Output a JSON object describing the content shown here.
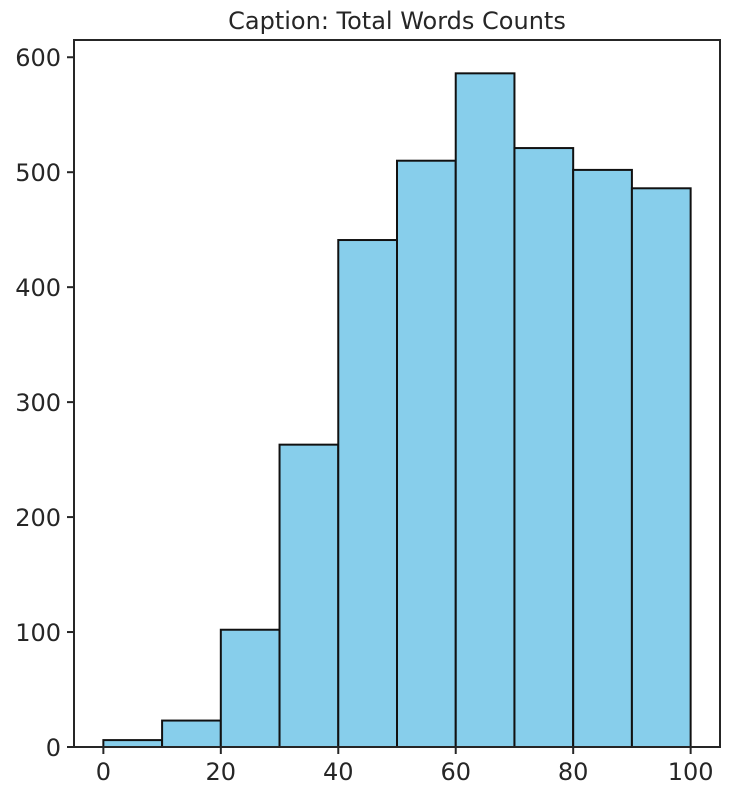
{
  "chart_data": {
    "type": "bar",
    "title": "Caption: Total Words Counts",
    "xlabel": "",
    "ylabel": "",
    "bins": [
      {
        "start": 0,
        "end": 10,
        "count": 6
      },
      {
        "start": 10,
        "end": 20,
        "count": 23
      },
      {
        "start": 20,
        "end": 30,
        "count": 102
      },
      {
        "start": 30,
        "end": 40,
        "count": 263
      },
      {
        "start": 40,
        "end": 50,
        "count": 441
      },
      {
        "start": 50,
        "end": 60,
        "count": 510
      },
      {
        "start": 60,
        "end": 70,
        "count": 586
      },
      {
        "start": 70,
        "end": 80,
        "count": 521
      },
      {
        "start": 80,
        "end": 90,
        "count": 502
      },
      {
        "start": 90,
        "end": 100,
        "count": 486
      }
    ],
    "xlim": [
      -5,
      105
    ],
    "ylim": [
      0,
      615
    ],
    "xticks": [
      0,
      20,
      40,
      60,
      80,
      100
    ],
    "yticks": [
      0,
      100,
      200,
      300,
      400,
      500,
      600
    ],
    "grid": false,
    "colors": {
      "bar_fill": "#87CEEB",
      "bar_edge": "#111111",
      "axis": "#262626",
      "text": "#262626"
    }
  }
}
